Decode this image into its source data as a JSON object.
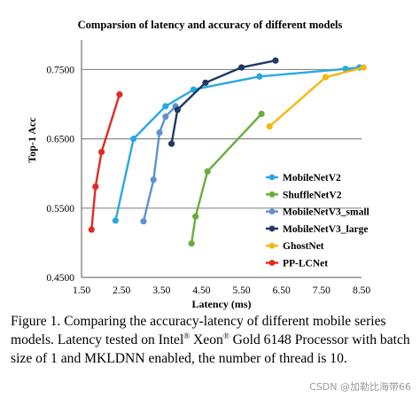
{
  "chart_data": {
    "type": "line",
    "title": "Comparsion of latency and accuracy of different models",
    "xlabel": "Latency (ms)",
    "ylabel": "Top-1 Acc",
    "xlim": [
      1.5,
      8.5
    ],
    "ylim": [
      0.45,
      0.78
    ],
    "xticks": [
      "1.50",
      "2.50",
      "3.50",
      "4.50",
      "5.50",
      "6.50",
      "7.50",
      "8.50"
    ],
    "yticks": [
      "0.4500",
      "0.5500",
      "0.6500",
      "0.7500"
    ],
    "grid": "horizontal",
    "legend_position": "right",
    "series": [
      {
        "name": "MobileNetV2",
        "color": "#29a8e0",
        "points": [
          [
            2.35,
            0.532
          ],
          [
            2.8,
            0.65
          ],
          [
            3.6,
            0.697
          ],
          [
            4.3,
            0.721
          ],
          [
            5.95,
            0.74
          ],
          [
            8.1,
            0.751
          ],
          [
            8.45,
            0.753
          ]
        ]
      },
      {
        "name": "ShuffleNetV2",
        "color": "#6aad3c",
        "points": [
          [
            4.25,
            0.499
          ],
          [
            4.35,
            0.538
          ],
          [
            4.65,
            0.603
          ],
          [
            6.0,
            0.686
          ]
        ]
      },
      {
        "name": "MobileNetV3_small",
        "color": "#5b93cf",
        "points": [
          [
            3.05,
            0.531
          ],
          [
            3.3,
            0.591
          ],
          [
            3.45,
            0.659
          ],
          [
            3.6,
            0.682
          ],
          [
            3.85,
            0.697
          ]
        ]
      },
      {
        "name": "MobileNetV3_large",
        "color": "#1f3864",
        "points": [
          [
            3.75,
            0.643
          ],
          [
            3.9,
            0.692
          ],
          [
            4.6,
            0.731
          ],
          [
            5.5,
            0.753
          ],
          [
            6.35,
            0.763
          ]
        ]
      },
      {
        "name": "GhostNet",
        "color": "#f5b80f",
        "points": [
          [
            6.2,
            0.668
          ],
          [
            7.6,
            0.739
          ],
          [
            8.55,
            0.753
          ]
        ]
      },
      {
        "name": "PP-LCNet",
        "color": "#e12a22",
        "points": [
          [
            1.75,
            0.519
          ],
          [
            1.85,
            0.581
          ],
          [
            2.0,
            0.631
          ],
          [
            2.45,
            0.714
          ]
        ]
      }
    ]
  },
  "caption": {
    "part1": "Figure 1. Comparing the accuracy-latency of different mobile series models. Latency tested on Intel",
    "reg1": "®",
    "part2": " Xeon",
    "reg2": "®",
    "part3": " Gold 6148 Processor with batch size of 1 and MKLDNN enabled, the number of thread is 10."
  },
  "watermark": "CSDN @加勒比海带66"
}
